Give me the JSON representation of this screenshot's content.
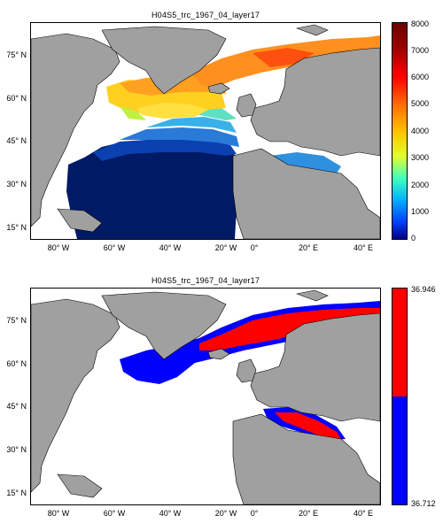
{
  "panels": [
    {
      "title": "H04S5_trc_1967_04_layer17",
      "colorbar": {
        "type": "jet",
        "labels": [
          "8000",
          "7000",
          "6000",
          "5000",
          "4000",
          "3000",
          "2000",
          "1000",
          "0"
        ]
      }
    },
    {
      "title": "H04S5_trc_1967_04_layer17",
      "colorbar": {
        "type": "binary",
        "top": "36.946",
        "bottom": "36.712",
        "colors": [
          "#ff0000",
          "#0000ff"
        ]
      }
    }
  ],
  "axes": {
    "lat_labels": [
      "75° N",
      "60° N",
      "45° N",
      "30° N",
      "15° N"
    ],
    "lon_labels": [
      "80° W",
      "60° W",
      "40° W",
      "20° W",
      "0°",
      "20° E",
      "40° E"
    ]
  },
  "colors": {
    "land": "#a0a0a0",
    "ocean": "#ffffff",
    "deep_blue": "#001a66"
  }
}
